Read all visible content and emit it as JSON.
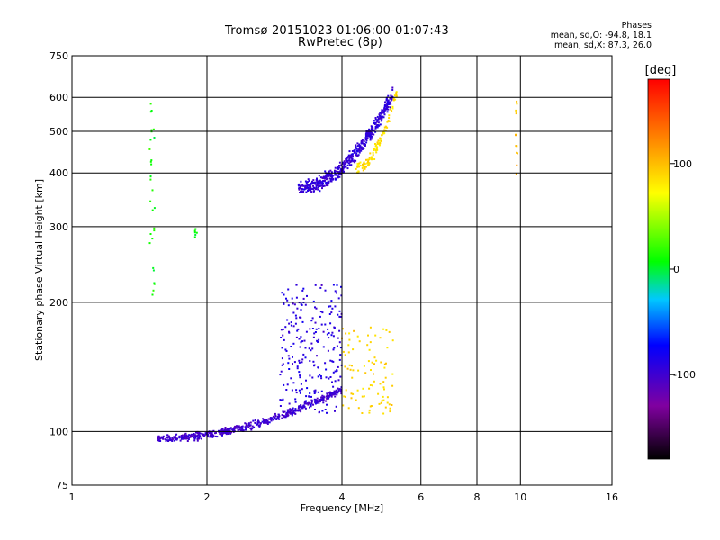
{
  "header": {
    "title_line1": "Tromsø 20151023 01:06:00-01:07:43",
    "title_line2": "RwPretec (8p)",
    "stats_title": "Phases",
    "stats_o": "mean, sd,O: -94.8, 18.1",
    "stats_x": "mean, sd,X:  87.3, 26.0"
  },
  "colors": {
    "grid": "#000000",
    "background": "#ffffff",
    "colorbar_stops": [
      "#000000",
      "#8000a0",
      "#0000ff",
      "#00c8ff",
      "#00ff00",
      "#ffff00",
      "#ff8000",
      "#ff0000"
    ]
  },
  "chart_data": {
    "type": "scatter",
    "title": "Tromsø 20151023 01:06:00-01:07:43",
    "subtitle": "RwPretec (8p)",
    "xlabel": "Frequency [MHz]",
    "ylabel": "Stationary phase Virtual Height [km]",
    "x_scale": "log",
    "y_scale": "log",
    "xlim": [
      1,
      16
    ],
    "ylim": [
      75,
      750
    ],
    "x_ticks": [
      1,
      2,
      4,
      6,
      8,
      10,
      16
    ],
    "x_tick_labels": [
      "1",
      "2",
      "4",
      "6",
      "8",
      "10",
      "16"
    ],
    "y_ticks": [
      75,
      100,
      200,
      300,
      400,
      500,
      600,
      750
    ],
    "y_tick_labels": [
      "75",
      "100",
      "200",
      "300",
      "400",
      "500",
      "600",
      "750"
    ],
    "grid": true,
    "colorbar": {
      "label": "[deg]",
      "range": [
        -180,
        180
      ],
      "ticks": [
        -100,
        0,
        100
      ],
      "tick_labels": [
        "-100",
        "0",
        "100"
      ]
    },
    "point_groups": [
      {
        "name": "E-layer O-mode trace",
        "phase_deg": -100,
        "x_range": [
          1.55,
          4.0
        ],
        "y_range": [
          95,
          130
        ],
        "count": 520
      },
      {
        "name": "E/F1 O-mode spread",
        "phase_deg": -90,
        "x_range": [
          2.9,
          4.0
        ],
        "y_range": [
          110,
          220
        ],
        "count": 240
      },
      {
        "name": "F-layer O-mode trace",
        "phase_deg": -95,
        "x_range": [
          3.2,
          5.2
        ],
        "y_range": [
          360,
          650
        ],
        "count": 520
      },
      {
        "name": "F-layer X-mode trace",
        "phase_deg": 85,
        "x_range": [
          4.3,
          5.3
        ],
        "y_range": [
          400,
          650
        ],
        "count": 110
      },
      {
        "name": "E-layer X-mode echoes",
        "phase_deg": 90,
        "x_range": [
          4.0,
          5.2
        ],
        "y_range": [
          110,
          175
        ],
        "count": 90
      },
      {
        "name": "Interference column 1.5 MHz",
        "phase_deg": 10,
        "x_range": [
          1.49,
          1.53
        ],
        "y_range": [
          205,
          580
        ],
        "count": 30
      },
      {
        "name": "Interference column 1.9 MHz",
        "phase_deg": 10,
        "x_range": [
          1.88,
          1.9
        ],
        "y_range": [
          280,
          300
        ],
        "count": 6
      },
      {
        "name": "Interference column 9.8 MHz",
        "phase_deg": 100,
        "x_range": [
          9.75,
          9.85
        ],
        "y_range": [
          395,
          600
        ],
        "count": 12
      }
    ]
  }
}
